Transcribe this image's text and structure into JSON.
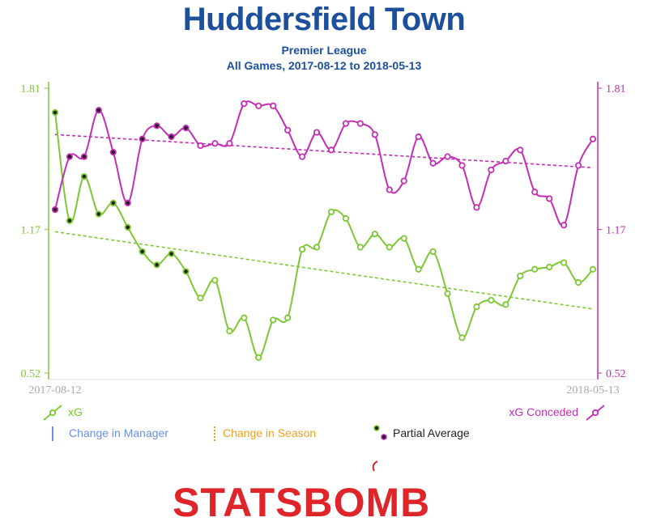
{
  "header": {
    "title": "Huddersfield Town",
    "competition": "Premier League",
    "range": "All Games, 2017-08-12 to 2018-05-13"
  },
  "legend": {
    "xg": "xG",
    "xg_conceded": "xG Conceded",
    "manager_change": "Change in Manager",
    "season_change": "Change in Season",
    "partial_average": "Partial Average"
  },
  "logo": {
    "text": "STATSBOMB"
  },
  "colors": {
    "xg": "#7dc832",
    "xg_conceded": "#c42eb5",
    "manager_change": "#6a8fe6",
    "season_change": "#f0a020",
    "title": "#1c4f9c",
    "logo": "#e0252a"
  },
  "chart_data": {
    "type": "line",
    "x_start_label": "2017-08-12",
    "x_end_label": "2018-05-13",
    "y_ticks": [
      "0.52",
      "1.17",
      "1.81"
    ],
    "ylim": [
      0.52,
      1.81
    ],
    "match_count": 38,
    "series": [
      {
        "name": "xG",
        "axis": "left",
        "values": [
          1.7,
          1.21,
          1.41,
          1.24,
          1.29,
          1.18,
          1.07,
          1.01,
          1.06,
          0.98,
          0.86,
          0.94,
          0.71,
          0.77,
          0.59,
          0.76,
          0.77,
          1.08,
          1.09,
          1.25,
          1.22,
          1.09,
          1.15,
          1.09,
          1.13,
          0.99,
          1.07,
          0.88,
          0.68,
          0.82,
          0.85,
          0.83,
          0.96,
          0.99,
          1.0,
          1.02,
          0.93,
          0.99
        ],
        "partial": [
          true,
          true,
          true,
          true,
          true,
          true,
          true,
          true,
          true,
          true,
          false,
          false,
          false,
          false,
          false,
          false,
          false,
          false,
          false,
          false,
          false,
          false,
          false,
          false,
          false,
          false,
          false,
          false,
          false,
          false,
          false,
          false,
          false,
          false,
          false,
          false,
          false,
          false
        ],
        "trend": [
          1.16,
          0.81
        ]
      },
      {
        "name": "xG Conceded",
        "axis": "right",
        "values": [
          1.26,
          1.5,
          1.5,
          1.71,
          1.52,
          1.29,
          1.58,
          1.64,
          1.59,
          1.63,
          1.55,
          1.56,
          1.56,
          1.74,
          1.73,
          1.73,
          1.62,
          1.5,
          1.61,
          1.53,
          1.65,
          1.65,
          1.6,
          1.35,
          1.39,
          1.59,
          1.47,
          1.5,
          1.46,
          1.27,
          1.44,
          1.48,
          1.53,
          1.34,
          1.31,
          1.19,
          1.46,
          1.58
        ],
        "partial": [
          true,
          true,
          true,
          true,
          true,
          true,
          true,
          true,
          true,
          true,
          false,
          false,
          false,
          false,
          false,
          false,
          false,
          false,
          false,
          false,
          false,
          false,
          false,
          false,
          false,
          false,
          false,
          false,
          false,
          false,
          false,
          false,
          false,
          false,
          false,
          false,
          false,
          false
        ],
        "trend": [
          1.6,
          1.45
        ]
      }
    ]
  }
}
